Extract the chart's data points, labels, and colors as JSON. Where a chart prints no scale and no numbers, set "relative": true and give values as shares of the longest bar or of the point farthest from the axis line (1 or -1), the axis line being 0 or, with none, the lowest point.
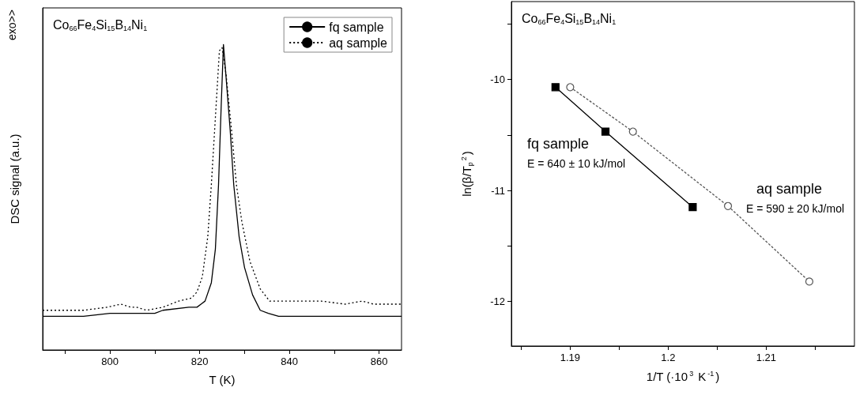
{
  "chart_data": [
    {
      "type": "line",
      "title": "Co$_{66}$Fe$_{4}$Si$_{15}$B$_{14}$Ni$_{1}$",
      "xlabel": "T (K)",
      "ylabel": "DSC signal (a.u.)",
      "annotations": [
        "exo>>"
      ],
      "relative": true,
      "xlim": [
        785,
        865
      ],
      "xticks": [
        {
          "value": 790,
          "label": null
        },
        800,
        {
          "value": 810,
          "label": null
        },
        820,
        {
          "value": 830,
          "label": null
        },
        840,
        {
          "value": 850,
          "label": null
        },
        860
      ],
      "legend": "top right",
      "marker": "none",
      "tick_labels": "x",
      "series": [
        {
          "name": "fq sample",
          "color": "#000000",
          "line_style": "solid",
          "x": [
            785,
            788.2,
            794.1,
            800,
            805.9,
            810,
            811.8,
            817.6,
            819.4,
            821.2,
            822.6,
            823.5,
            824.2,
            824.8,
            825.3,
            825.9,
            826.8,
            827.6,
            828.8,
            830,
            831.8,
            833.5,
            835.3,
            837.6,
            841.8,
            847.1,
            851.8,
            852.9,
            858.8,
            865
          ],
          "values": [
            0.11,
            0.11,
            0.11,
            0.12,
            0.12,
            0.12,
            0.13,
            0.14,
            0.14,
            0.16,
            0.22,
            0.33,
            0.54,
            0.8,
            1,
            0.89,
            0.72,
            0.54,
            0.37,
            0.27,
            0.18,
            0.13,
            0.12,
            0.11,
            0.11,
            0.11,
            0.11,
            0.11,
            0.11,
            0.11
          ]
        },
        {
          "name": "aq sample",
          "color": "#000000",
          "line_style": "dotted",
          "x": [
            785,
            794.1,
            799.4,
            802.4,
            804.7,
            805.9,
            808.2,
            811.8,
            815.3,
            818.2,
            819.4,
            820.6,
            821.8,
            822.6,
            823.5,
            824.4,
            825,
            825.9,
            827.1,
            828.2,
            829.4,
            831.2,
            833.5,
            835.6,
            838.8,
            847.1,
            852.4,
            856.2,
            858.8,
            865
          ],
          "values": [
            0.13,
            0.13,
            0.14,
            0.15,
            0.14,
            0.14,
            0.13,
            0.14,
            0.16,
            0.17,
            0.19,
            0.24,
            0.37,
            0.54,
            0.76,
            0.98,
            0.99,
            0.9,
            0.72,
            0.54,
            0.42,
            0.29,
            0.2,
            0.16,
            0.16,
            0.16,
            0.15,
            0.16,
            0.15,
            0.15
          ]
        }
      ]
    },
    {
      "type": "line",
      "title": "Co$_{66}$Fe$_{4}$Si$_{15}$B$_{14}$Ni$_{1}$",
      "xlabel": "1/T (·10$^{3}$ K$^{-1}$)",
      "ylabel": "ln(β/T$_{p}$$^{2}$)",
      "xlim": [
        1.184,
        1.219
      ],
      "xticks": [
        {
          "value": 1.185,
          "label": null
        },
        1.19,
        {
          "value": 1.195,
          "label": null
        },
        1.2,
        {
          "value": 1.205,
          "label": null
        },
        1.21,
        {
          "value": 1.215,
          "label": null
        }
      ],
      "ylim": [
        -12.4,
        -9.3
      ],
      "yticks": [
        -12,
        {
          "value": -11.5,
          "label": null
        },
        -11,
        {
          "value": -10.5,
          "label": null
        },
        -10,
        {
          "value": -9.5,
          "label": null
        }
      ],
      "annotations": [
        "E = 640 ± 10 kJ/mol",
        "E = 590 ± 20 kJ/mol"
      ],
      "series": [
        {
          "name": "fq sample",
          "color": "#000000",
          "marker": "square",
          "line_style": "solid",
          "x": [
            1.1885,
            1.1936,
            1.2025
          ],
          "values": [
            -10.07,
            -10.47,
            -11.15
          ]
        },
        {
          "name": "aq sample",
          "color": "#555555",
          "marker": "circle",
          "line_style": "dashed",
          "x": [
            1.19,
            1.1964,
            1.2061,
            1.2144
          ],
          "values": [
            -10.07,
            -10.47,
            -11.14,
            -11.82
          ]
        }
      ]
    }
  ]
}
